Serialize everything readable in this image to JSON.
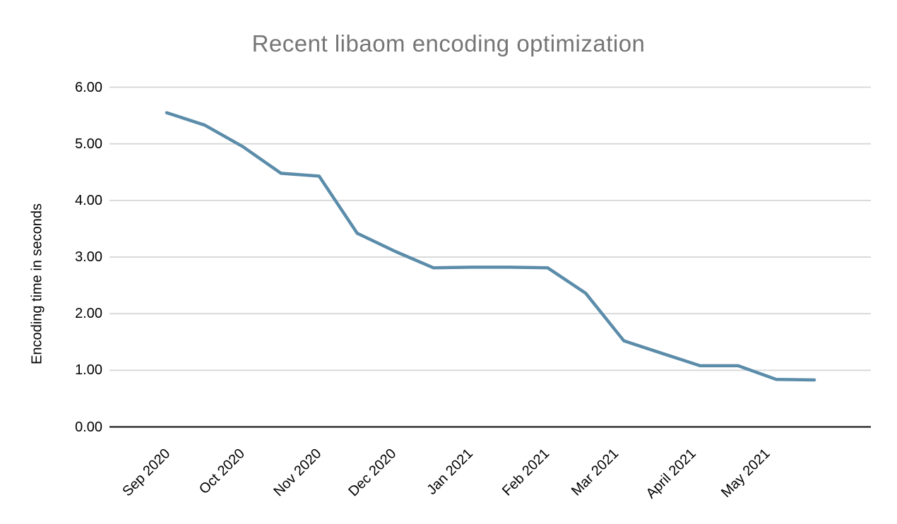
{
  "page": {
    "background_color": "#ffffff"
  },
  "chart_data": {
    "type": "line",
    "title": "Recent libaom encoding optimization",
    "title_color": "#757575",
    "xlabel": "",
    "ylabel": "Encoding time in seconds",
    "x_tick_labels": [
      "Sep 2020",
      "Oct 2020",
      "Nov 2020",
      "Dec 2020",
      "Jan 2021",
      "Feb 2021",
      "Mar 2021",
      "April 2021",
      "May 2021"
    ],
    "y_tick_labels": [
      "0.00",
      "1.00",
      "2.00",
      "3.00",
      "4.00",
      "5.00",
      "6.00"
    ],
    "ylim": [
      0,
      6
    ],
    "grid": "horizontal",
    "legend_position": "none",
    "line_color": "#5b8ca9",
    "gridline_color": "#d9d9d9",
    "axis_line_color": "#333333",
    "tick_label_color": "#000000",
    "series": [
      {
        "name": "Encoding time in seconds",
        "values": [
          5.55,
          5.33,
          4.95,
          4.48,
          4.43,
          3.42,
          3.1,
          2.81,
          2.82,
          2.82,
          2.81,
          2.36,
          1.52,
          1.3,
          1.08,
          1.08,
          0.84,
          0.83
        ]
      }
    ]
  }
}
